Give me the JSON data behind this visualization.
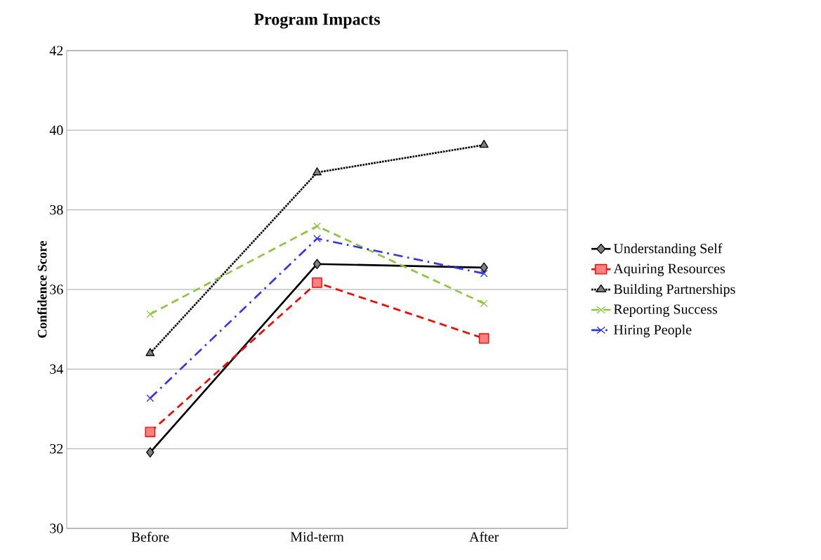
{
  "chart_data": {
    "type": "line",
    "title": "Program Impacts",
    "ylabel": "Confidence Score",
    "categories": [
      "Before",
      "Mid-term",
      "After"
    ],
    "series": [
      {
        "name": "Understanding Self",
        "color": "#000000",
        "marker": "diamond",
        "line_style": "solid",
        "values": [
          31.91,
          36.64,
          36.55
        ]
      },
      {
        "name": "Aquiring Resources",
        "color": "#ff0000",
        "marker": "square",
        "line_style": "dashed",
        "values": [
          32.42,
          36.17,
          34.77
        ]
      },
      {
        "name": "Building Partnerships",
        "color": "#000000",
        "marker": "triangle",
        "line_style": "dotted",
        "values": [
          34.4,
          38.94,
          39.63
        ]
      },
      {
        "name": "Reporting Success",
        "color": "#8cc63f",
        "marker": "cross",
        "line_style": "dashed",
        "values": [
          35.38,
          37.59,
          35.65
        ]
      },
      {
        "name": "Hiring People",
        "color": "#3333ff",
        "marker": "cross",
        "line_style": "dashdot",
        "values": [
          33.27,
          37.28,
          36.4
        ]
      }
    ],
    "ylim": [
      30,
      42
    ],
    "yticks": [
      30,
      32,
      34,
      36,
      38,
      40,
      42
    ],
    "grid": "y",
    "legend": "right"
  }
}
